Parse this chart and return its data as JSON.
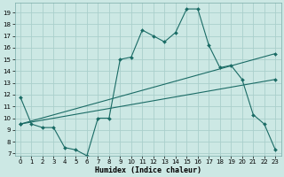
{
  "xlabel": "Humidex (Indice chaleur)",
  "bg_color": "#cce8e4",
  "grid_color": "#aacfcc",
  "line_color": "#1a6b65",
  "xlim": [
    -0.5,
    23.5
  ],
  "ylim": [
    6.8,
    19.8
  ],
  "xticks": [
    0,
    1,
    2,
    3,
    4,
    5,
    6,
    7,
    8,
    9,
    10,
    11,
    12,
    13,
    14,
    15,
    16,
    17,
    18,
    19,
    20,
    21,
    22,
    23
  ],
  "yticks": [
    7,
    8,
    9,
    10,
    11,
    12,
    13,
    14,
    15,
    16,
    17,
    18,
    19
  ],
  "line1_x": [
    0,
    1,
    2,
    3,
    4,
    5,
    6,
    7,
    8,
    9,
    10,
    11,
    12,
    13,
    14,
    15,
    16,
    17,
    18,
    19,
    20,
    21,
    22,
    23
  ],
  "line1_y": [
    11.8,
    9.5,
    9.2,
    9.2,
    7.5,
    7.3,
    6.8,
    10.0,
    10.0,
    15.0,
    15.2,
    17.5,
    17.0,
    16.5,
    17.3,
    19.3,
    19.3,
    16.2,
    14.3,
    14.5,
    13.3,
    10.3,
    9.5,
    7.3
  ],
  "line2_x": [
    0,
    23
  ],
  "line2_y": [
    9.5,
    15.5
  ],
  "line3_x": [
    0,
    23
  ],
  "line3_y": [
    9.5,
    13.3
  ]
}
